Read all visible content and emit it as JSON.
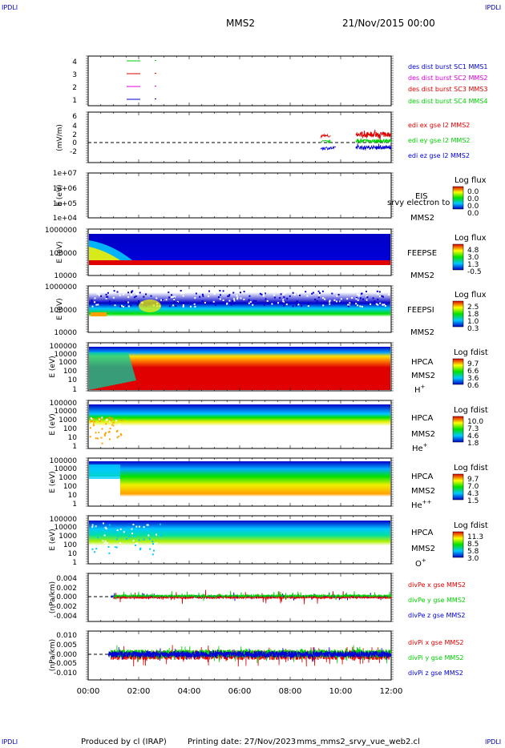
{
  "header": {
    "corner_label": "IPDLI",
    "mission": "MMS2",
    "date": "21/Nov/2015 00:00"
  },
  "footer": {
    "produced_by": "Produced by cl (IRAP)",
    "printing_date": "Printing date: 27/Nov/2023",
    "filename": "mms_mms2_srvy_vue_web2.cl"
  },
  "colors": {
    "red": "#e00000",
    "green": "#00d000",
    "blue": "#0000d8",
    "magenta": "#e000e0",
    "dark_red": "#c80000"
  },
  "chart_data": [
    {
      "type": "line",
      "panel": "burst-availability",
      "yticks": [
        "4",
        "3",
        "2",
        "1"
      ],
      "ylim": [
        0.5,
        4.5
      ],
      "legend": [
        {
          "label": "des dist burst SC1 MMS1",
          "color": "#0000d8"
        },
        {
          "label": "des dist burst SC2 MMS2",
          "color": "#e000e0"
        },
        {
          "label": "des dist burst SC3 MMS3",
          "color": "#e00000"
        },
        {
          "label": "des dist burst SC4 MMS4",
          "color": "#00d000"
        }
      ]
    },
    {
      "type": "line",
      "panel": "electric-field",
      "ylabel": "(mV/m)",
      "yticks": [
        "6",
        "4",
        "2",
        "0",
        "-2"
      ],
      "ylim": [
        -3,
        6
      ],
      "legend": [
        {
          "label": "edi ex gse l2 MMS2",
          "color": "#e00000"
        },
        {
          "label": "edi ey gse l2 MMS2",
          "color": "#00d000"
        },
        {
          "label": "edi ez gse l2 MMS2",
          "color": "#0000d8"
        }
      ]
    },
    {
      "type": "heatmap",
      "panel": "eis",
      "ylabel": "E (eV)",
      "yticks": [
        "1e+07",
        "1e+06",
        "1e+05",
        "1e+04"
      ],
      "instrument": "EIS",
      "species": "srvy electron to",
      "spacecraft": "MMS2",
      "colorbar_title": "Log flux",
      "colorbar_ticks": [
        "0.0",
        "0.0",
        "0.0",
        "0.0"
      ]
    },
    {
      "type": "heatmap",
      "panel": "feepse",
      "ylabel": "E (eV)",
      "yticks": [
        "1000000",
        "100000",
        "10000"
      ],
      "instrument": "FEEPSE",
      "spacecraft": "MMS2",
      "colorbar_title": "Log flux",
      "colorbar_ticks": [
        "4.8",
        "3.0",
        "1.3",
        "-0.5"
      ]
    },
    {
      "type": "heatmap",
      "panel": "feepsi",
      "ylabel": "E (eV)",
      "yticks": [
        "1000000",
        "100000",
        "10000"
      ],
      "instrument": "FEEPSI",
      "spacecraft": "MMS2",
      "colorbar_title": "Log flux",
      "colorbar_ticks": [
        "2.5",
        "1.8",
        "1.0",
        "0.3"
      ]
    },
    {
      "type": "heatmap",
      "panel": "hpca-h",
      "ylabel": "E (eV)",
      "yticks": [
        "100000",
        "10000",
        "1000",
        "100",
        "10",
        "1"
      ],
      "instrument": "HPCA",
      "spacecraft": "MMS2",
      "ion": "H",
      "ion_charge": "+",
      "colorbar_title": "Log fdist",
      "colorbar_ticks": [
        "9.7",
        "6.6",
        "3.6",
        "0.6"
      ]
    },
    {
      "type": "heatmap",
      "panel": "hpca-he1",
      "ylabel": "E (eV)",
      "yticks": [
        "100000",
        "10000",
        "1000",
        "100",
        "10",
        "1"
      ],
      "instrument": "HPCA",
      "spacecraft": "MMS2",
      "ion": "He",
      "ion_charge": "+",
      "colorbar_title": "Log fdist",
      "colorbar_ticks": [
        "10.0",
        "7.3",
        "4.6",
        "1.8"
      ]
    },
    {
      "type": "heatmap",
      "panel": "hpca-he2",
      "ylabel": "E (eV)",
      "yticks": [
        "100000",
        "10000",
        "1000",
        "100",
        "10",
        "1"
      ],
      "instrument": "HPCA",
      "spacecraft": "MMS2",
      "ion": "He",
      "ion_charge": "++",
      "colorbar_title": "Log fdist",
      "colorbar_ticks": [
        "9.7",
        "7.0",
        "4.3",
        "1.5"
      ]
    },
    {
      "type": "heatmap",
      "panel": "hpca-o",
      "ylabel": "E (eV)",
      "yticks": [
        "100000",
        "10000",
        "1000",
        "100",
        "10",
        "1"
      ],
      "instrument": "HPCA",
      "spacecraft": "MMS2",
      "ion": "O",
      "ion_charge": "+",
      "colorbar_title": "Log fdist",
      "colorbar_ticks": [
        "11.3",
        "8.5",
        "5.8",
        "3.0"
      ]
    },
    {
      "type": "line",
      "panel": "divpe",
      "ylabel": "(nPa/km)",
      "yticks": [
        "0.004",
        "0.002",
        "0.000",
        "-0.002",
        "-0.004"
      ],
      "ylim": [
        -0.005,
        0.005
      ],
      "legend": [
        {
          "label": "divPe x gse MMS2",
          "color": "#e00000"
        },
        {
          "label": "divPe y gse MMS2",
          "color": "#00d000"
        },
        {
          "label": "divPe z gse MMS2",
          "color": "#0000d8"
        }
      ]
    },
    {
      "type": "line",
      "panel": "divpi",
      "ylabel": "(nPa/km)",
      "yticks": [
        "0.010",
        "0.005",
        "0.000",
        "-0.005",
        "-0.010"
      ],
      "ylim": [
        -0.013,
        0.013
      ],
      "legend": [
        {
          "label": "divPi x gse MMS2",
          "color": "#e00000"
        },
        {
          "label": "divPi y gse MMS2",
          "color": "#00d000"
        },
        {
          "label": "divPi z gse MMS2",
          "color": "#0000d8"
        }
      ]
    }
  ],
  "time_axis": {
    "ticks": [
      "00:00",
      "02:00",
      "04:00",
      "06:00",
      "08:00",
      "10:00",
      "12:00"
    ],
    "range_hours": [
      0,
      12
    ]
  }
}
